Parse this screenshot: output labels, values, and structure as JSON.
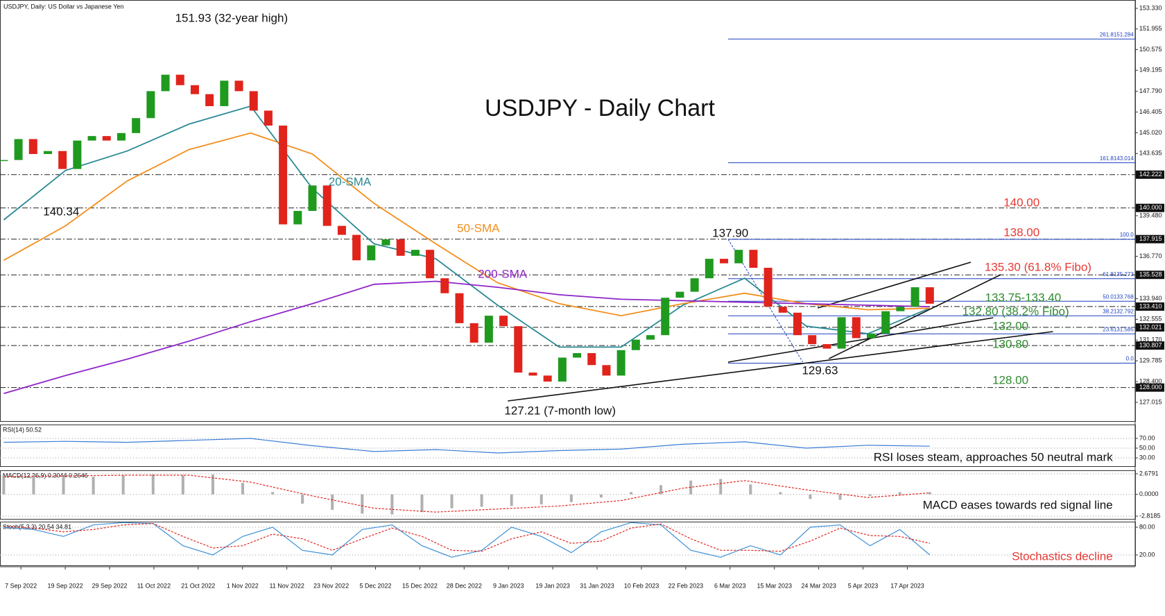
{
  "header": "USDJPY, Daily:  US Dollar vs Japanese Yen",
  "chart_data": [
    {
      "type": "candlestick",
      "title": "USDJPY - Daily Chart",
      "close": [
        143.2,
        144.6,
        143.6,
        143.8,
        142.6,
        144.5,
        144.8,
        144.5,
        145.0,
        146.0,
        147.8,
        148.9,
        148.2,
        147.6,
        146.8,
        148.5,
        147.8,
        146.5,
        145.5,
        138.9,
        139.8,
        141.5,
        138.8,
        138.2,
        136.5,
        137.5,
        137.9,
        136.8,
        137.2,
        135.3,
        134.3,
        132.3,
        131.0,
        132.8,
        132.1,
        129.0,
        128.8,
        128.4,
        130.0,
        130.3,
        129.5,
        128.8,
        130.5,
        131.2,
        131.5,
        134.0,
        134.4,
        135.3,
        136.6,
        136.3,
        137.2,
        136.0,
        133.4,
        133.0,
        131.5,
        130.9,
        130.6,
        132.7,
        131.3,
        131.6,
        133.1,
        133.4,
        134.7,
        133.6
      ],
      "up_color": "#1f9a1f",
      "down_color": "#e0241c",
      "overlays": [
        {
          "name": "20-SMA",
          "color": "#2a8a94",
          "values": [
            139.2,
            142.5,
            143.8,
            145.6,
            146.8,
            141.3,
            137.6,
            136.6,
            133.5,
            130.7,
            130.7,
            133.5,
            135.3,
            132.1,
            131.6,
            133.3
          ]
        },
        {
          "name": "50-SMA",
          "color": "#f28e1c",
          "values": [
            136.5,
            138.8,
            141.8,
            143.9,
            145.0,
            143.6,
            140.3,
            137.6,
            135.0,
            133.6,
            132.8,
            133.6,
            134.3,
            133.6,
            133.2,
            133.3
          ]
        },
        {
          "name": "200-SMA",
          "color": "#8e24c8",
          "values": [
            127.6,
            128.8,
            129.9,
            131.1,
            132.4,
            133.6,
            134.9,
            135.1,
            134.7,
            134.2,
            133.9,
            133.8,
            133.7,
            133.6,
            133.5,
            133.4
          ]
        }
      ],
      "ylim": [
        125.76,
        153.89
      ],
      "yticks": [
        {
          "value": 153.33,
          "label": "153.330"
        },
        {
          "value": 151.955,
          "label": "151.955"
        },
        {
          "value": 150.575,
          "label": "150.575"
        },
        {
          "value": 149.195,
          "label": "149.195"
        },
        {
          "value": 147.79,
          "label": "147.790"
        },
        {
          "value": 146.405,
          "label": "146.405"
        },
        {
          "value": 145.02,
          "label": "145.020"
        },
        {
          "value": 143.635,
          "label": "143.635"
        },
        {
          "value": 139.48,
          "label": "139.480"
        },
        {
          "value": 136.77,
          "label": "136.770"
        },
        {
          "value": 133.94,
          "label": "133.940"
        },
        {
          "value": 132.555,
          "label": "132.555"
        },
        {
          "value": 131.17,
          "label": "131.170"
        },
        {
          "value": 129.785,
          "label": "129.785"
        },
        {
          "value": 128.4,
          "label": "128.400"
        },
        {
          "value": 127.015,
          "label": "127.015"
        }
      ],
      "levels": [
        {
          "value": 142.222,
          "label": "142.222"
        },
        {
          "value": 140,
          "label": "140.000"
        },
        {
          "value": 137.915,
          "label": "137.915"
        },
        {
          "value": 135.528,
          "label": "135.528"
        },
        {
          "value": 133.41,
          "label": "133.410"
        },
        {
          "value": 132.021,
          "label": "132.021"
        },
        {
          "value": 130.807,
          "label": "130.807"
        },
        {
          "value": 128,
          "label": "128.000"
        }
      ],
      "fibonacci": [
        {
          "level": "261.8",
          "price": 151.284,
          "show_price": true
        },
        {
          "level": "161.8",
          "price": 143.014,
          "show_price": true
        },
        {
          "level": "100.0",
          "price": 137.9,
          "show_price": false
        },
        {
          "level": "61.8",
          "price": 135.273,
          "show_price": true
        },
        {
          "level": "50.0",
          "price": 133.768,
          "show_price": true
        },
        {
          "level": "38.2",
          "price": 132.792,
          "show_price": true
        },
        {
          "level": "23.6",
          "price": 131.585,
          "show_price": true
        },
        {
          "level": "0.0",
          "price": 129.63,
          "show_price": false
        }
      ],
      "fib_color": "#1a3fbf",
      "annotations": [
        {
          "text": "151.93 (32-year high)",
          "color": "#111111"
        },
        {
          "text": "140.34",
          "color": "#111111"
        },
        {
          "text": "137.90",
          "color": "#111111"
        },
        {
          "text": "129.63",
          "color": "#111111"
        },
        {
          "text": "127.21 (7-month low)",
          "color": "#111111"
        },
        {
          "text": "140.00",
          "color": "#e53935"
        },
        {
          "text": "138.00",
          "color": "#e53935"
        },
        {
          "text": "135.30 (61.8% Fibo)",
          "color": "#e53935"
        },
        {
          "text": "133.75-133.40",
          "color": "#2e8b2e"
        },
        {
          "text": "132.80 (38.2% Fibo)",
          "color": "#2e8b2e"
        },
        {
          "text": "132.00",
          "color": "#2e8b2e"
        },
        {
          "text": "130.80",
          "color": "#2e8b2e"
        },
        {
          "text": "128.00",
          "color": "#2e8b2e"
        }
      ],
      "x_labels": [
        "7 Sep 2022",
        "19 Sep 2022",
        "29 Sep 2022",
        "11 Oct 2022",
        "21 Oct 2022",
        "1 Nov 2022",
        "11 Nov 2022",
        "23 Nov 2022",
        "5 Dec 2022",
        "15 Dec 2022",
        "28 Dec 2022",
        "9 Jan 2023",
        "19 Jan 2023",
        "31 Jan 2023",
        "10 Feb 2023",
        "22 Feb 2023",
        "6 Mar 2023",
        "15 Mar 2023",
        "24 Mar 2023",
        "5 Apr 2023",
        "17 Apr 2023"
      ]
    },
    {
      "type": "line",
      "title": "RSI(14) 50.52",
      "annotation": {
        "text": "RSI loses steam, approaches 50 neutral mark",
        "color": "#111111"
      },
      "series": [
        {
          "color": "#3a7bd5",
          "dash": false,
          "values": [
            62,
            64,
            62,
            66,
            70,
            55,
            43,
            47,
            40,
            45,
            48,
            58,
            63,
            50,
            56,
            54
          ]
        }
      ],
      "ylim": [
        12.9,
        98.6
      ],
      "yticks": [
        {
          "value": 70,
          "label": "70.00"
        },
        {
          "value": 50,
          "label": "50.00"
        },
        {
          "value": 30,
          "label": "30.00"
        }
      ]
    },
    {
      "type": "macd",
      "title": "MACD(12,26,9) 0.3044 0.2646",
      "annotation": {
        "text": "MACD eases towards red signal line",
        "color": "#111111"
      },
      "histogram": {
        "color": "#b0b0b0",
        "values": [
          2.4,
          2.5,
          2.4,
          2.3,
          2.5,
          2.6,
          2.5,
          2.6,
          1.5,
          0.3,
          -1.2,
          -2.0,
          -2.5,
          -2.6,
          -2.3,
          -1.8,
          -1.6,
          -1.5,
          -1.3,
          -1.0,
          -0.4,
          0.3,
          1.2,
          1.8,
          2.0,
          1.3,
          0.3,
          -0.6,
          -0.7,
          -0.2,
          0.3,
          0.3
        ]
      },
      "signal": {
        "color": "#e0241c",
        "dash": true,
        "values": [
          2.3,
          2.4,
          2.5,
          2.5,
          1.6,
          -0.2,
          -1.8,
          -2.3,
          -1.9,
          -1.5,
          -0.8,
          0.8,
          1.8,
          0.6,
          -0.4,
          0.2
        ]
      },
      "ylim": [
        -3.18,
        3.13
      ],
      "yticks": [
        2.6791,
        {
          "value": 0,
          "label": "0.0000"
        },
        -2.8185
      ]
    },
    {
      "type": "line",
      "title": "Stoch(5,3,3) 20.54 34.81",
      "annotation": {
        "text": "Stochastics decline",
        "color": "#e53935"
      },
      "series": [
        {
          "color": "#3a8fd5",
          "dash": false,
          "values": [
            80,
            75,
            60,
            85,
            90,
            88,
            40,
            20,
            60,
            80,
            30,
            20,
            75,
            85,
            40,
            15,
            30,
            80,
            60,
            25,
            70,
            90,
            85,
            30,
            15,
            40,
            20,
            80,
            85,
            40,
            75,
            20
          ]
        },
        {
          "color": "#e0241c",
          "dash": true,
          "values": [
            82,
            78,
            70,
            75,
            85,
            88,
            60,
            35,
            40,
            65,
            55,
            30,
            55,
            78,
            60,
            30,
            28,
            55,
            70,
            45,
            50,
            78,
            87,
            55,
            30,
            30,
            28,
            50,
            78,
            62,
            60,
            45
          ]
        }
      ],
      "ylim": [
        -2.5,
        92
      ],
      "yticks": [
        {
          "value": 80,
          "label": "80.00"
        },
        {
          "value": 20,
          "label": "20.00"
        }
      ]
    }
  ]
}
